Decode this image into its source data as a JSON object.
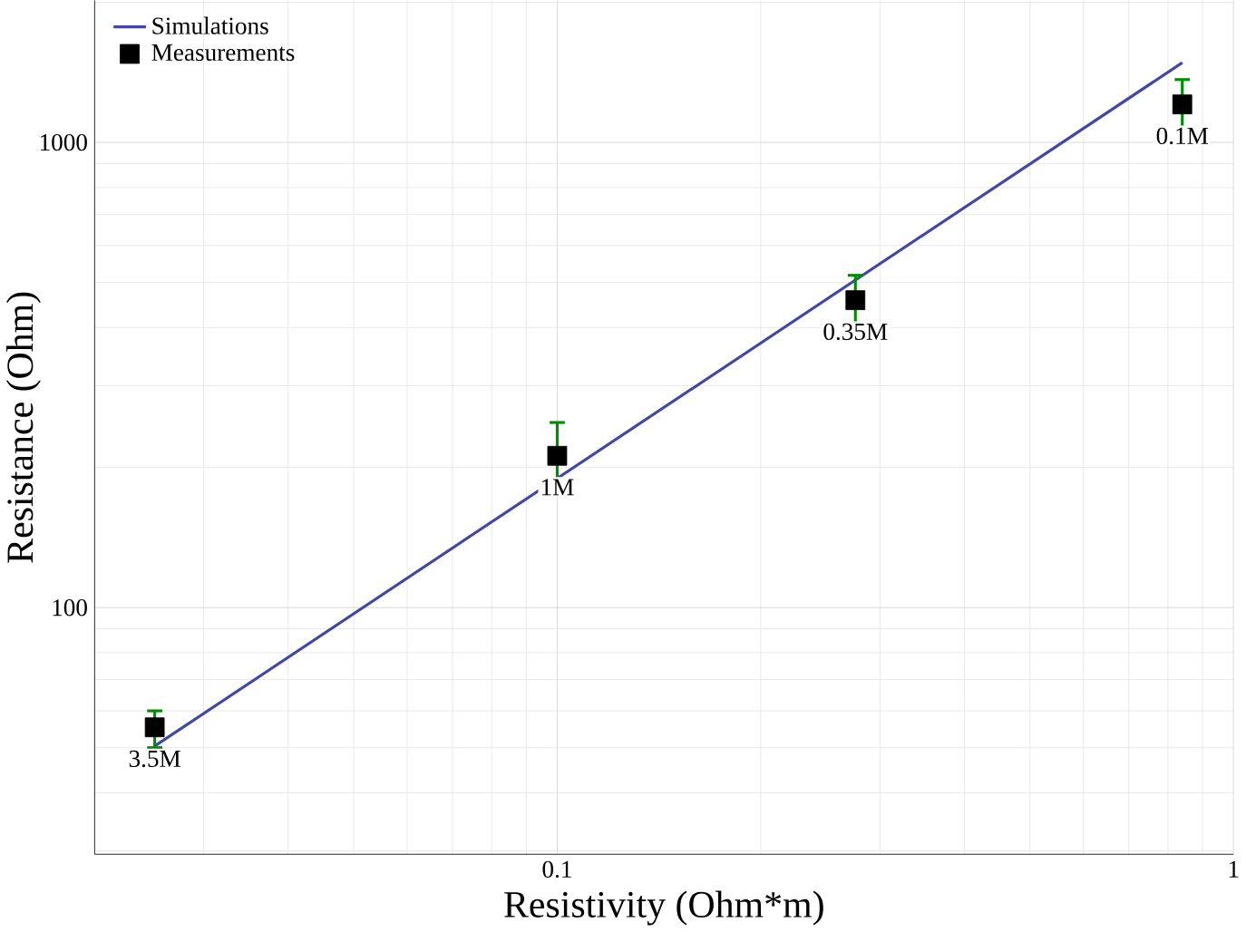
{
  "chart_data": {
    "type": "line",
    "xlabel": "Resistivity (Ohm*m)",
    "ylabel": "Resistance (Ohm)",
    "log": "xy",
    "grid": true,
    "legend": "top left",
    "xlim": [
      0.0207,
      1
    ],
    "ylim": [
      29.5,
      2020
    ],
    "xticks": [
      0.1,
      1
    ],
    "yticks": [
      100,
      1000
    ],
    "series": [
      {
        "name": "Simulations",
        "color": "#3f48a8",
        "x": [
          0.0254,
          0.84
        ],
        "values": [
          50.4,
          1484
        ]
      },
      {
        "name": "Measurements",
        "type": "scatter",
        "marker": "square",
        "color": "#000000",
        "x": [
          0.0254,
          0.1,
          0.276,
          0.84
        ],
        "values": [
          55.3,
          212,
          458,
          1207
        ],
        "errors": [
          [
            50,
            60
          ],
          [
            177,
            250
          ],
          [
            391,
            518
          ],
          [
            1058,
            1365
          ]
        ]
      }
    ],
    "annotations": [
      {
        "text": "3.5M",
        "x": 0.0254,
        "y": 55.3
      },
      {
        "text": "1M",
        "x": 0.1,
        "y": 212
      },
      {
        "text": "0.35M",
        "x": 0.276,
        "y": 458
      },
      {
        "text": "0.1M",
        "x": 0.84,
        "y": 1207
      }
    ]
  }
}
